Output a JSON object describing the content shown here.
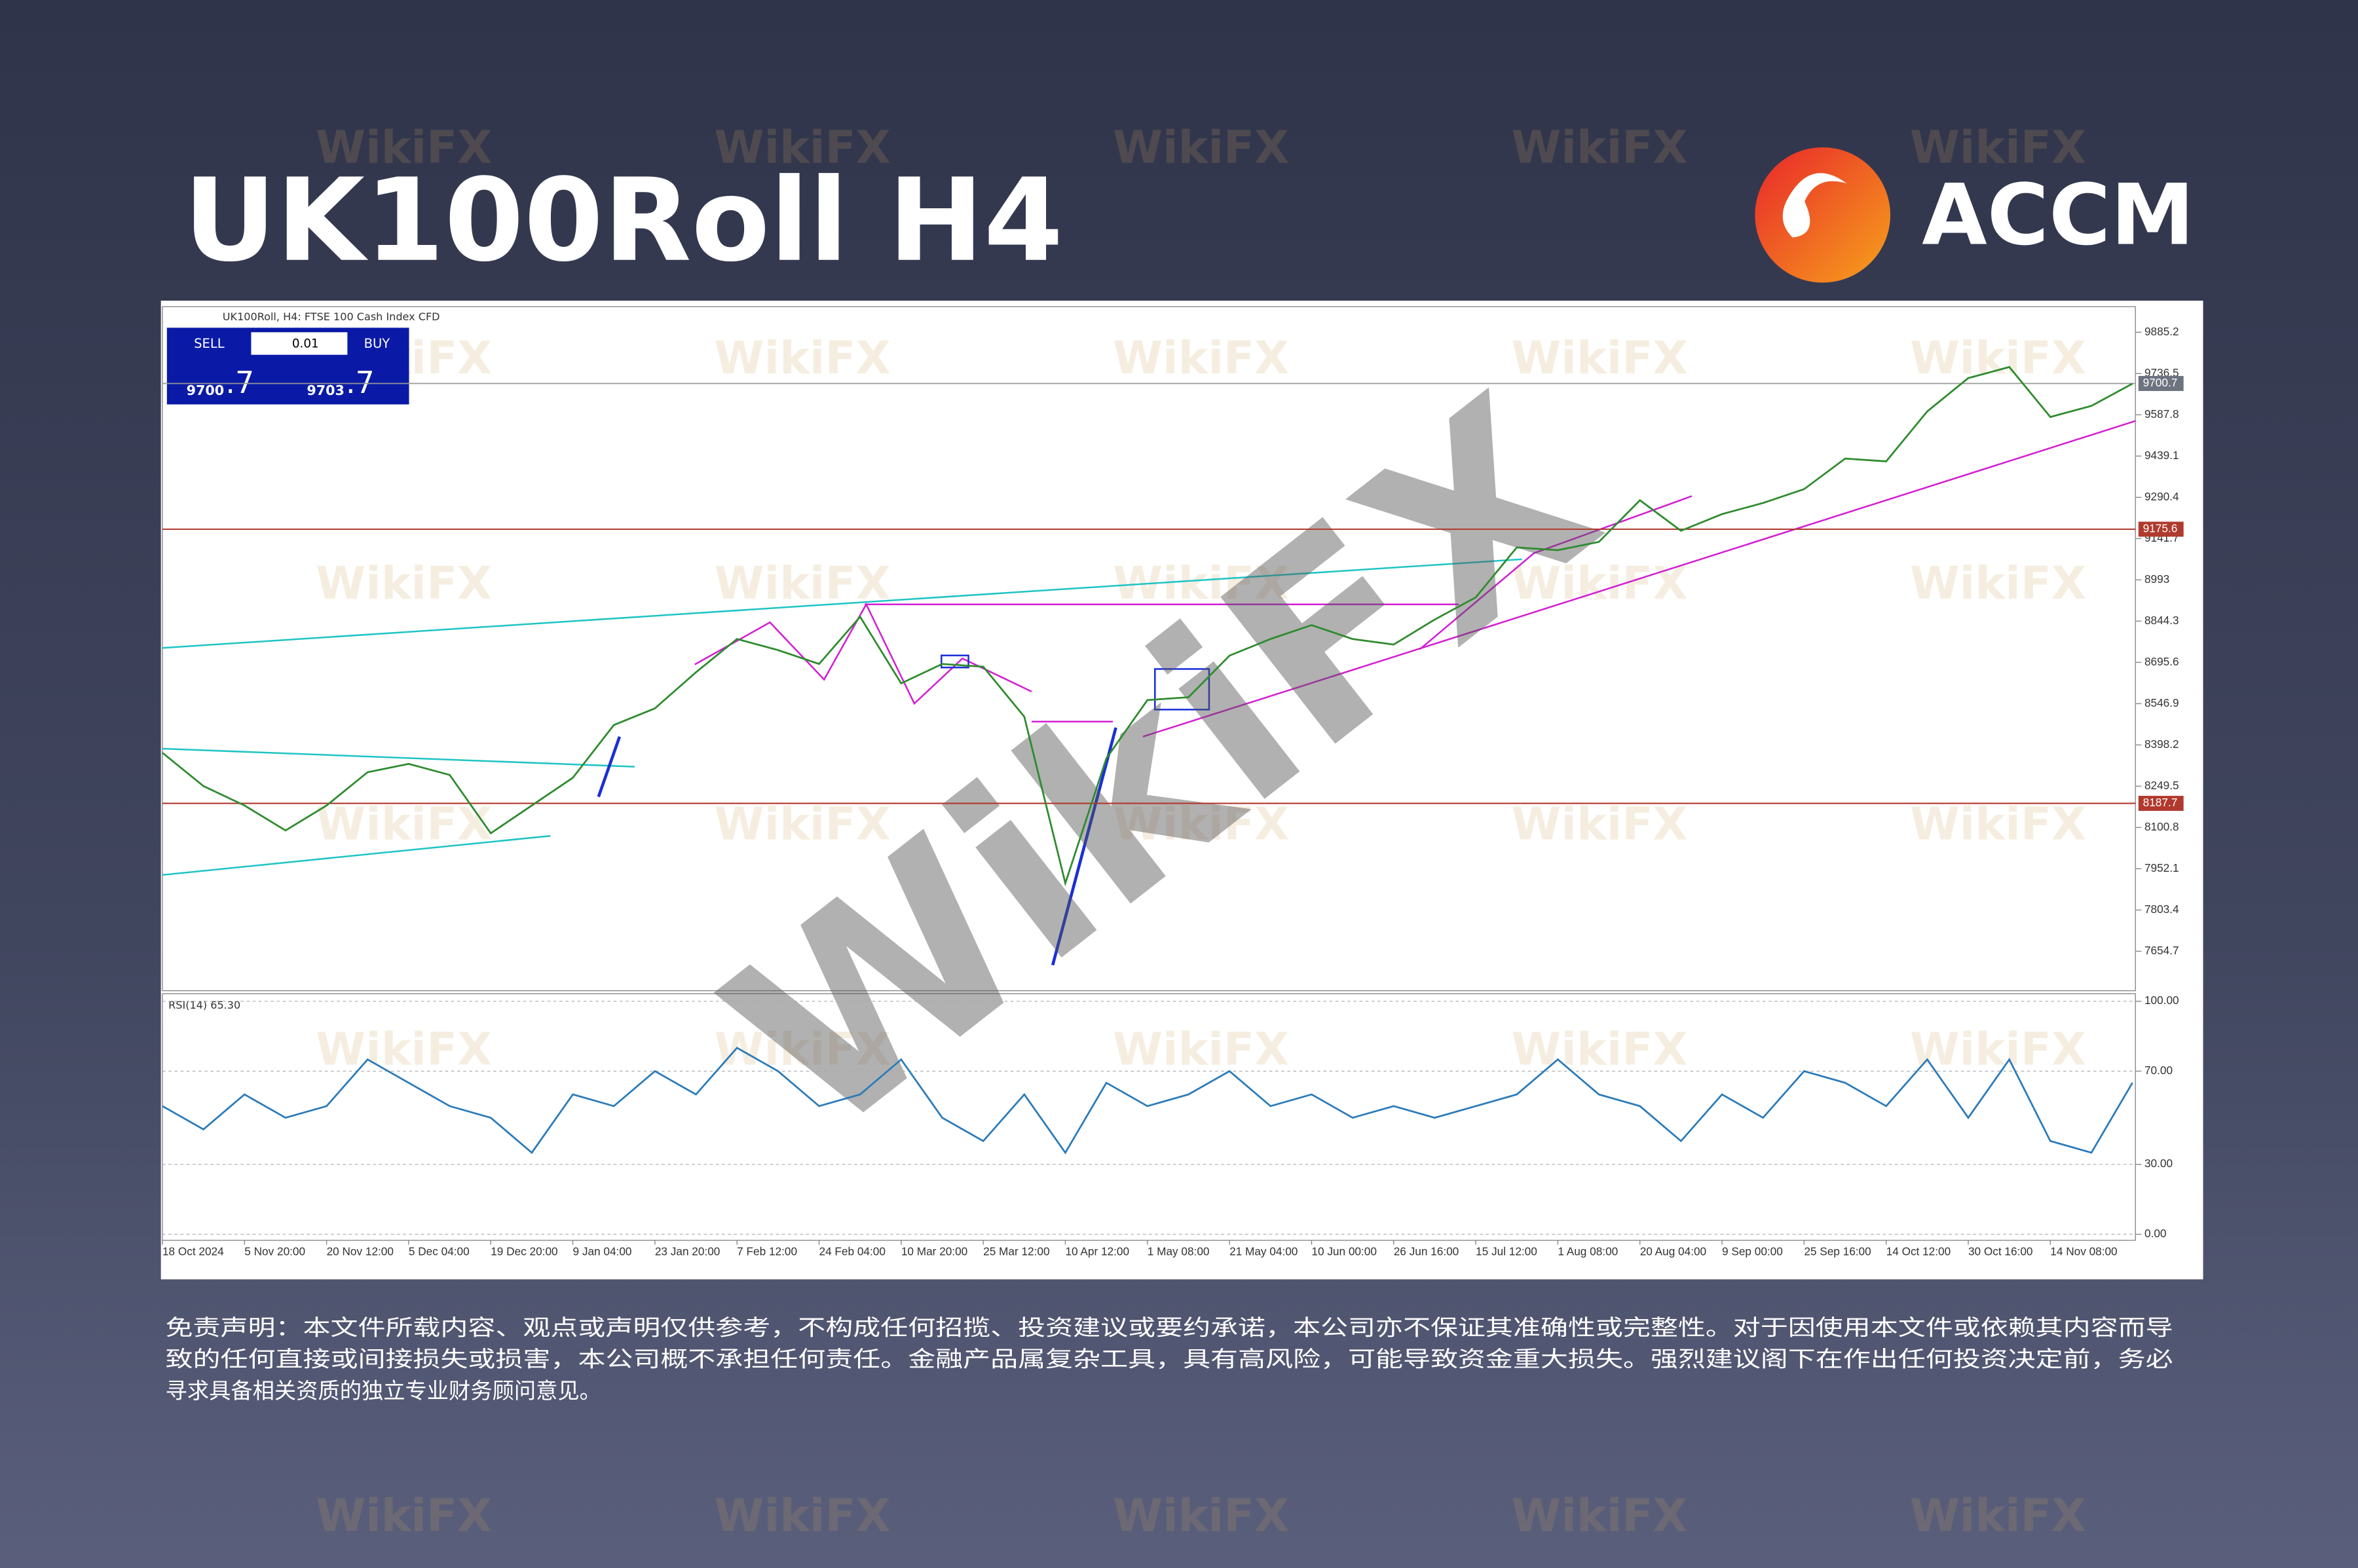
{
  "header": {
    "title": "UK100Roll H4",
    "brand": "ACCM"
  },
  "watermark": "WikiFX",
  "chart_data": [
    {
      "type": "line",
      "title": "UK100Roll, H4:  FTSE 100 Cash Index CFD",
      "categories": [
        "18 Oct 2024",
        null,
        "5 Nov 20:00",
        null,
        "20 Nov 12:00",
        null,
        "5 Dec 04:00",
        null,
        "19 Dec 20:00",
        null,
        "9 Jan 04:00",
        null,
        "23 Jan 20:00",
        null,
        "7 Feb 12:00",
        null,
        "24 Feb 04:00",
        null,
        "10 Mar 20:00",
        null,
        "25 Mar 12:00",
        null,
        "10 Apr 12:00",
        null,
        "1 May 08:00",
        null,
        "21 May 04:00",
        null,
        "10 Jun 00:00",
        null,
        "26 Jun 16:00",
        null,
        "15 Jul 12:00",
        null,
        "1 Aug 08:00",
        null,
        "20 Aug 04:00",
        null,
        "9 Sep 00:00",
        null,
        "25 Sep 16:00",
        null,
        "14 Oct 12:00",
        null,
        "30 Oct 16:00",
        null,
        "14 Nov 08:00",
        null,
        null
      ],
      "values": [
        8370,
        8250,
        8180,
        8090,
        8180,
        8300,
        8330,
        8290,
        8080,
        8180,
        8280,
        8470,
        8530,
        8660,
        8780,
        8740,
        8690,
        8860,
        8620,
        8690,
        8680,
        8500,
        7900,
        8350,
        8560,
        8570,
        8720,
        8780,
        8830,
        8780,
        8760,
        8850,
        8930,
        9110,
        9100,
        9130,
        9280,
        9170,
        9230,
        9270,
        9320,
        9430,
        9420,
        9600,
        9720,
        9760,
        9580,
        9620,
        9700
      ],
      "color": "#2e8b2e",
      "ylim": [
        7518,
        9972
      ],
      "yticks": [
        9885.2,
        9736.5,
        9587.8,
        9439.1,
        9290.4,
        9141.7,
        8993.0,
        8844.3,
        8695.6,
        8546.9,
        8398.2,
        8249.5,
        8100.8,
        7952.1,
        7803.4,
        7654.7
      ],
      "levels": [
        9175.6,
        8187.7
      ],
      "level_color": "#b03a2e",
      "current_price": 9700.7
    },
    {
      "type": "line",
      "title": "RSI(14) 65.30",
      "values": [
        55,
        45,
        60,
        50,
        55,
        75,
        65,
        55,
        50,
        35,
        60,
        55,
        70,
        60,
        80,
        70,
        55,
        60,
        75,
        50,
        40,
        60,
        35,
        65,
        55,
        60,
        70,
        55,
        60,
        50,
        55,
        50,
        55,
        60,
        75,
        60,
        55,
        40,
        60,
        50,
        70,
        65,
        55,
        75,
        50,
        75,
        40,
        35,
        65
      ],
      "color": "#2b7bb9",
      "ylim": [
        0,
        100
      ],
      "yticks": [
        {
          "value": 100,
          "label": "100.00"
        },
        {
          "value": 70,
          "label": "70.00"
        },
        {
          "value": 30,
          "label": "30.00"
        },
        {
          "value": 0,
          "label": "0.00"
        }
      ],
      "grid": true
    }
  ],
  "trade_panel": {
    "sell": "SELL",
    "buy": "BUY",
    "volume": "0.01",
    "sell_price": "9700",
    "sell_frac": ".7",
    "buy_price": "9703",
    "buy_frac": ".7"
  },
  "disclaimer": [
    "免责声明：本文件所载内容、观点或声明仅供参考，不构成任何招揽、投资建议或要约承诺，本公司亦不保证其准确性或完整性。对于因使用本文件或依赖其内容而导",
    "致的任何直接或间接损失或损害，本公司概不承担任何责任。金融产品属复杂工具，具有高风险，可能导致资金重大损失。强烈建议阁下在作出任何投资决定前，务必",
    "寻求具备相关资质的独立专业财务顾问意见。"
  ]
}
